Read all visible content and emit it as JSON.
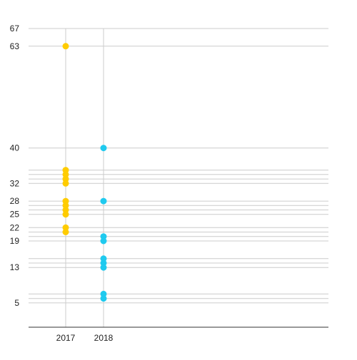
{
  "chart_data": {
    "type": "scatter",
    "title": "",
    "xlabel": "",
    "ylabel": "",
    "categories": [
      "2017",
      "2018"
    ],
    "y_ticks": [
      5,
      13,
      19,
      22,
      25,
      28,
      32,
      40,
      63,
      67
    ],
    "ylim": [
      -0.5,
      67
    ],
    "grid": true,
    "legend": "none",
    "series": [
      {
        "category": "2017",
        "color": "#FFCC00",
        "values": [
          63,
          35,
          34,
          33,
          32,
          28,
          27,
          26,
          25,
          22,
          21
        ]
      },
      {
        "category": "2018",
        "color": "#1FCAEF",
        "values": [
          40,
          28,
          20,
          19,
          15,
          14,
          13,
          7,
          6
        ]
      }
    ]
  }
}
